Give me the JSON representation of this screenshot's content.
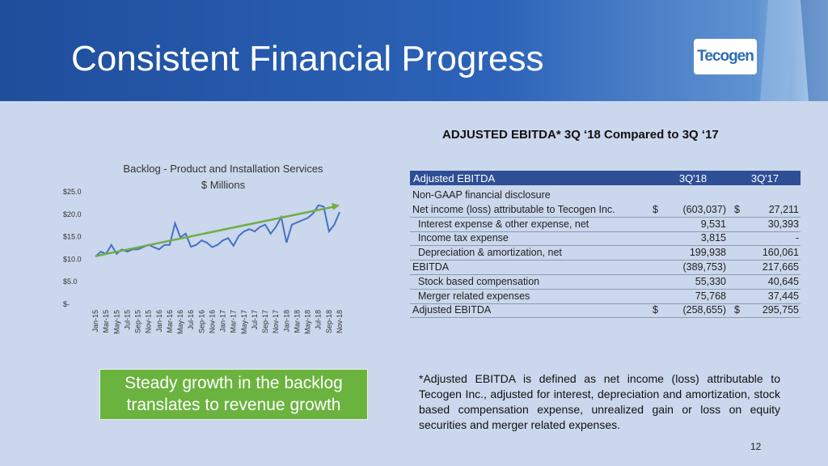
{
  "header": {
    "title": "Consistent Financial Progress",
    "logo": "Tecogen"
  },
  "section_title": "ADJUSTED EBITDA* 3Q ‘18 Compared to 3Q ‘17",
  "chart_data": {
    "type": "line",
    "title": "Backlog - Product and Installation Services",
    "subtitle": "$ Millions",
    "categories": [
      "Jan-15",
      null,
      "Mar-15",
      null,
      "May-15",
      null,
      "Jul-15",
      null,
      "Sep-15",
      null,
      "Nov-15",
      null,
      "Jan-16",
      null,
      "Mar-16",
      null,
      "May-16",
      null,
      "Jul-16",
      null,
      "Sep-16",
      null,
      "Nov-16",
      null,
      "Jan-17",
      null,
      "Mar-17",
      null,
      "May-17",
      null,
      "Jul-17",
      null,
      "Sep-17",
      null,
      "Nov-17",
      null,
      "Jan-18",
      null,
      "Mar-18",
      null,
      "May-18",
      null,
      "Jul-18",
      null,
      "Sep-18",
      null,
      "Nov-18"
    ],
    "series": [
      {
        "color": "#4472c4",
        "values": [
          10.4,
          11.5,
          11,
          13,
          11,
          12,
          11.5,
          12,
          12,
          12.5,
          13,
          12.5,
          12,
          13,
          13,
          17.8,
          14.7,
          15.5,
          12.6,
          13,
          14,
          13.5,
          12.5,
          13,
          14,
          14.5,
          12.8,
          15,
          16,
          16.5,
          16,
          17,
          17.5,
          15.5,
          17,
          19.2,
          13.5,
          17.5,
          18,
          18.5,
          19,
          20,
          21.8,
          21.5,
          16,
          17.5,
          20.3
        ]
      }
    ],
    "trend": {
      "start": 10.5,
      "end": 21.8,
      "color": "#70ad47"
    },
    "ylim": [
      0,
      25
    ],
    "yticks": [
      {
        "value": 0,
        "label": "$-"
      },
      {
        "value": 5,
        "label": "$5.0"
      },
      {
        "value": 10,
        "label": "$10.0"
      },
      {
        "value": 15,
        "label": "$15.0"
      },
      {
        "value": 20,
        "label": "$20.0"
      },
      {
        "value": 25,
        "label": "$25.0"
      }
    ]
  },
  "table": {
    "header": [
      "Adjusted EBITDA",
      "3Q'18",
      "3Q'17"
    ],
    "rows": [
      {
        "label": "Non-GAAP financial disclosure"
      },
      {
        "label": "Net income (loss) attributable to Tecogen Inc.",
        "c18": "$",
        "v18": "(603,037)",
        "c17": "$",
        "v17": "27,211"
      },
      {
        "label": "Interest expense & other expense, net",
        "indent": true,
        "v18": "9,531",
        "v17": "30,393"
      },
      {
        "label": "Income tax expense",
        "indent": true,
        "v18": "3,815",
        "v17": "-"
      },
      {
        "label": "Depreciation & amortization, net",
        "indent": true,
        "v18": "199,938",
        "v17": "160,061"
      },
      {
        "label": "EBITDA",
        "v18": "(389,753)",
        "v17": "217,665"
      },
      {
        "label": "Stock based compensation",
        "indent": true,
        "v18": "55,330",
        "v17": "40,645"
      },
      {
        "label": "Merger related expenses",
        "indent": true,
        "v18": "75,768",
        "v17": "37,445"
      },
      {
        "label": "Adjusted EBITDA",
        "c18": "$",
        "v18": "(258,655)",
        "c17": "$",
        "v17": "295,755"
      }
    ]
  },
  "callout": [
    "Steady growth in the backlog",
    "translates to revenue growth"
  ],
  "footnote": "*Adjusted EBITDA is defined as net income (loss) attributable to Tecogen Inc., adjusted for interest, depreciation and amortization, stock based compensation expense, unrealized gain or loss on equity securities and merger related expenses.",
  "page_number": "12"
}
